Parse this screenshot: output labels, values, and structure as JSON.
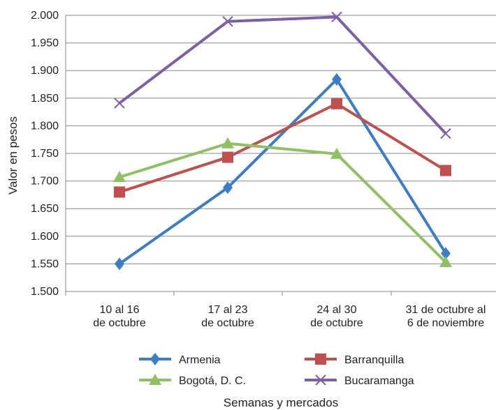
{
  "chart_data": {
    "type": "line",
    "categories": [
      [
        "10 al 16",
        "de octubre"
      ],
      [
        "17 al 23",
        "de octubre"
      ],
      [
        "24 al 30",
        "de octubre"
      ],
      [
        "31 de octubre al",
        "6 de noviembre"
      ]
    ],
    "series": [
      {
        "name": "Armenia",
        "values": [
          1550,
          1688,
          1884,
          1569
        ],
        "color": "#3d7dc4",
        "marker": "diamond"
      },
      {
        "name": "Barranquilla",
        "values": [
          1680,
          1743,
          1840,
          1719
        ],
        "color": "#c0504d",
        "marker": "square"
      },
      {
        "name": "Bogotá, D. C.",
        "values": [
          1707,
          1768,
          1749,
          1553
        ],
        "color": "#8fc163",
        "marker": "triangle"
      },
      {
        "name": "Bucaramanga",
        "values": [
          1841,
          1989,
          1997,
          1786
        ],
        "color": "#7d5fa6",
        "marker": "x"
      }
    ],
    "ylabel": "Valor en pesos",
    "xlabel": "Semanas y mercados",
    "ylim": [
      1500,
      2000
    ],
    "yticks": [
      "1.500",
      "1.550",
      "1.600",
      "1.650",
      "1.700",
      "1.750",
      "1.800",
      "1.850",
      "1.900",
      "1.950",
      "2.000"
    ],
    "grid": true,
    "legend_position": "bottom"
  }
}
